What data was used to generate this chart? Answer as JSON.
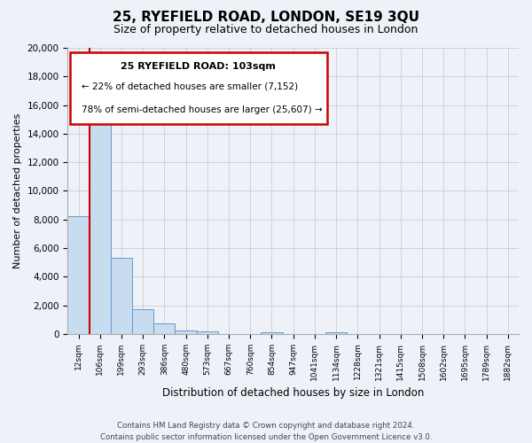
{
  "title": "25, RYEFIELD ROAD, LONDON, SE19 3QU",
  "subtitle": "Size of property relative to detached houses in London",
  "xlabel": "Distribution of detached houses by size in London",
  "ylabel": "Number of detached properties",
  "bar_color": "#c8dcf0",
  "bar_edge_color": "#6699cc",
  "grid_color": "#cccccc",
  "bg_color": "#eef2f8",
  "plot_bg_color": "#eef2f8",
  "annotation_box_color": "#ffffff",
  "annotation_border_color": "#cc0000",
  "vline_color": "#cc0000",
  "categories": [
    "12sqm",
    "106sqm",
    "199sqm",
    "293sqm",
    "386sqm",
    "480sqm",
    "573sqm",
    "667sqm",
    "760sqm",
    "854sqm",
    "947sqm",
    "1041sqm",
    "1134sqm",
    "1228sqm",
    "1321sqm",
    "1415sqm",
    "1508sqm",
    "1602sqm",
    "1695sqm",
    "1789sqm",
    "1882sqm"
  ],
  "values": [
    8200,
    16700,
    5300,
    1750,
    750,
    225,
    150,
    0,
    0,
    100,
    0,
    0,
    100,
    0,
    0,
    0,
    0,
    0,
    0,
    0,
    0
  ],
  "ylim": [
    0,
    20000
  ],
  "yticks": [
    0,
    2000,
    4000,
    6000,
    8000,
    10000,
    12000,
    14000,
    16000,
    18000,
    20000
  ],
  "annotation_title": "25 RYEFIELD ROAD: 103sqm",
  "annotation_line1": "← 22% of detached houses are smaller (7,152)",
  "annotation_line2": "78% of semi-detached houses are larger (25,607) →",
  "vline_x": 1,
  "footer_line1": "Contains HM Land Registry data © Crown copyright and database right 2024.",
  "footer_line2": "Contains public sector information licensed under the Open Government Licence v3.0."
}
